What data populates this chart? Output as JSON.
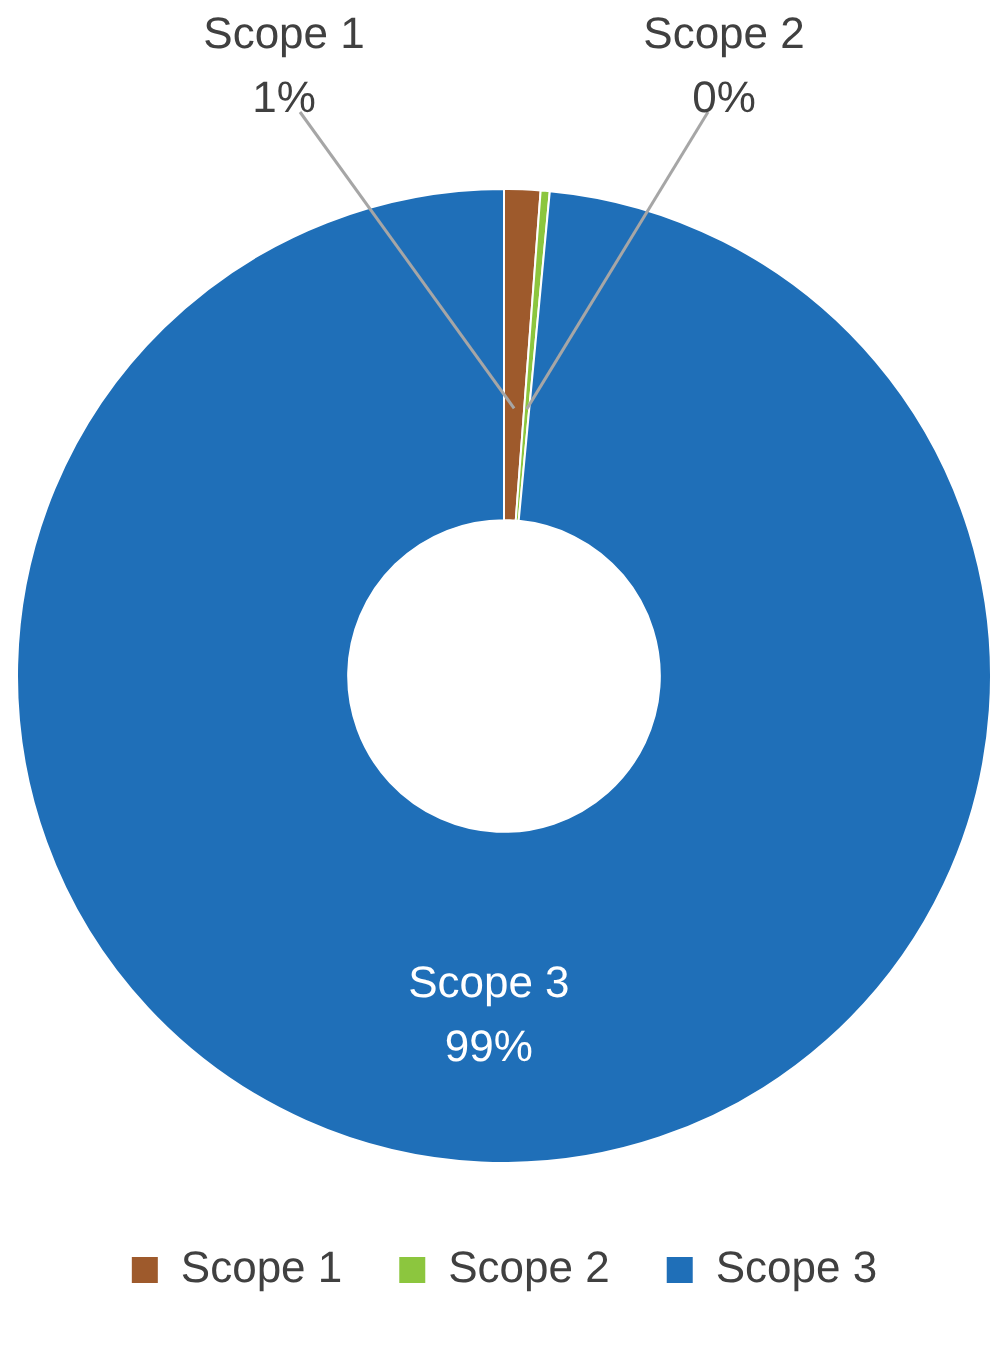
{
  "chart_data": {
    "type": "donut",
    "categories": [
      "Scope 1",
      "Scope 2",
      "Scope 3"
    ],
    "values": [
      1.2,
      0.3,
      98.5
    ],
    "value_labels": [
      "1%",
      "0%",
      "99%"
    ],
    "colors": [
      "#9e5a2c",
      "#8cc63e",
      "#1f6fb8"
    ],
    "legend": "bottom"
  }
}
